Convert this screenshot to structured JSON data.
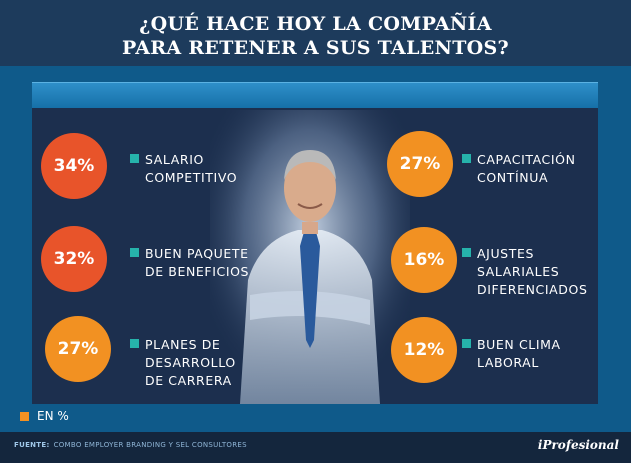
{
  "title": {
    "line1": "¿QUÉ HACE HOY LA COMPAÑÍA",
    "line2": "PARA RETENER A SUS TALENTOS?"
  },
  "legend": {
    "label": "EN %",
    "color": "#f29122"
  },
  "colors": {
    "circle_red": "#e8542a",
    "circle_orange": "#f29122",
    "bullet": "#26b3ab"
  },
  "chart_data": {
    "type": "bar",
    "unit": "%",
    "categories": [
      "SALARIO COMPETITIVO",
      "BUEN PAQUETE DE BENEFICIOS",
      "PLANES DE DESARROLLO DE CARRERA",
      "CAPACITACIÓN CONTÍNUA",
      "AJUSTES SALARIALES DIFERENCIADOS",
      "BUEN CLIMA LABORAL"
    ],
    "values": [
      34,
      32,
      27,
      27,
      16,
      12
    ],
    "items": [
      {
        "value": "34%",
        "label": "SALARIO\nCOMPETITIVO",
        "color": "#e8542a"
      },
      {
        "value": "32%",
        "label": "BUEN PAQUETE\nDE BENEFICIOS",
        "color": "#e8542a"
      },
      {
        "value": "27%",
        "label": "PLANES DE\nDESARROLLO\nDE CARRERA",
        "color": "#f29122"
      },
      {
        "value": "27%",
        "label": "CAPACITACIÓN\nCONTÍNUA",
        "color": "#f29122"
      },
      {
        "value": "16%",
        "label": "AJUSTES\nSALARIALES\nDIFERENCIADOS",
        "color": "#f29122"
      },
      {
        "value": "12%",
        "label": "BUEN CLIMA\nLABORAL",
        "color": "#f29122"
      }
    ]
  },
  "footer": {
    "source_label": "FUENTE:",
    "source_text": "COMBO EMPLOYER BRANDING Y SEL CONSULTORES",
    "logo": "iProfesional"
  }
}
